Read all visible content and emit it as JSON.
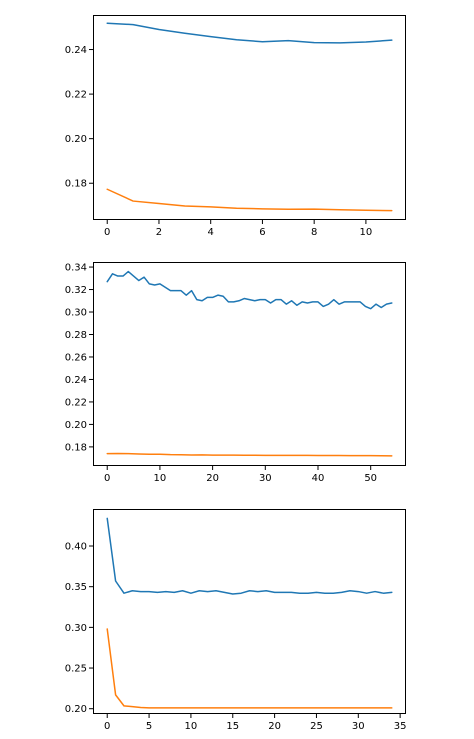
{
  "chart_data": [
    {
      "type": "line",
      "xlim": [
        -0.55,
        11.55
      ],
      "ylim": [
        0.1635,
        0.2555
      ],
      "xticks": [
        0,
        2,
        4,
        6,
        8,
        10
      ],
      "xtick_labels": [
        "0",
        "2",
        "4",
        "6",
        "8",
        "10"
      ],
      "yticks": [
        0.18,
        0.2,
        0.22,
        0.24
      ],
      "ytick_labels": [
        "0.18",
        "0.20",
        "0.22",
        "0.24"
      ],
      "series": [
        {
          "color": "#1f77b4",
          "x": [
            0,
            1,
            2,
            3,
            4,
            5,
            6,
            7,
            8,
            9,
            10,
            11
          ],
          "y": [
            0.2518,
            0.2512,
            0.249,
            0.2473,
            0.2458,
            0.2444,
            0.2435,
            0.244,
            0.2431,
            0.243,
            0.2434,
            0.2442
          ]
        },
        {
          "color": "#ff7f0e",
          "x": [
            0,
            1,
            2,
            3,
            4,
            5,
            6,
            7,
            8,
            9,
            10,
            11
          ],
          "y": [
            0.1773,
            0.172,
            0.1709,
            0.1698,
            0.1694,
            0.1688,
            0.1685,
            0.1683,
            0.1684,
            0.1681,
            0.1679,
            0.1677
          ]
        }
      ]
    },
    {
      "type": "line",
      "xlim": [
        -2.7,
        56.7
      ],
      "ylim": [
        0.163,
        0.3445
      ],
      "xticks": [
        0,
        10,
        20,
        30,
        40,
        50
      ],
      "xtick_labels": [
        "0",
        "10",
        "20",
        "30",
        "40",
        "50"
      ],
      "yticks": [
        0.18,
        0.2,
        0.22,
        0.24,
        0.26,
        0.28,
        0.3,
        0.32,
        0.34
      ],
      "ytick_labels": [
        "0.18",
        "0.20",
        "0.22",
        "0.24",
        "0.26",
        "0.28",
        "0.30",
        "0.32",
        "0.34"
      ],
      "series": [
        {
          "color": "#1f77b4",
          "x": [
            0,
            1,
            2,
            3,
            4,
            5,
            6,
            7,
            8,
            9,
            10,
            11,
            12,
            13,
            14,
            15,
            16,
            17,
            18,
            19,
            20,
            21,
            22,
            23,
            24,
            25,
            26,
            27,
            28,
            29,
            30,
            31,
            32,
            33,
            34,
            35,
            36,
            37,
            38,
            39,
            40,
            41,
            42,
            43,
            44,
            45,
            46,
            47,
            48,
            49,
            50,
            51,
            52,
            53,
            54
          ],
          "y": [
            0.327,
            0.334,
            0.332,
            0.332,
            0.336,
            0.332,
            0.328,
            0.331,
            0.325,
            0.324,
            0.325,
            0.322,
            0.319,
            0.319,
            0.319,
            0.315,
            0.319,
            0.311,
            0.31,
            0.313,
            0.313,
            0.315,
            0.314,
            0.309,
            0.309,
            0.31,
            0.312,
            0.311,
            0.31,
            0.311,
            0.311,
            0.308,
            0.311,
            0.311,
            0.307,
            0.31,
            0.306,
            0.309,
            0.308,
            0.309,
            0.309,
            0.305,
            0.307,
            0.311,
            0.307,
            0.309,
            0.309,
            0.309,
            0.309,
            0.305,
            0.303,
            0.307,
            0.304,
            0.307,
            0.308
          ]
        },
        {
          "color": "#ff7f0e",
          "x": [
            0,
            2,
            4,
            6,
            8,
            10,
            12,
            14,
            16,
            18,
            20,
            22,
            24,
            26,
            28,
            30,
            32,
            34,
            36,
            38,
            40,
            42,
            44,
            46,
            48,
            50,
            52,
            54
          ],
          "y": [
            0.174,
            0.1741,
            0.174,
            0.1737,
            0.1735,
            0.1735,
            0.1731,
            0.173,
            0.1728,
            0.1729,
            0.1727,
            0.1727,
            0.1727,
            0.1726,
            0.1726,
            0.1725,
            0.1725,
            0.1725,
            0.1724,
            0.1724,
            0.1723,
            0.1723,
            0.1723,
            0.1722,
            0.1722,
            0.1722,
            0.1721,
            0.172
          ]
        }
      ]
    },
    {
      "type": "line",
      "xlim": [
        -1.7,
        35.7
      ],
      "ylim": [
        0.1935,
        0.4455
      ],
      "xticks": [
        0,
        5,
        10,
        15,
        20,
        25,
        30,
        35
      ],
      "xtick_labels": [
        "0",
        "5",
        "10",
        "15",
        "20",
        "25",
        "30",
        "35"
      ],
      "yticks": [
        0.2,
        0.25,
        0.3,
        0.35,
        0.4
      ],
      "ytick_labels": [
        "0.20",
        "0.25",
        "0.30",
        "0.35",
        "0.40"
      ],
      "series": [
        {
          "color": "#1f77b4",
          "x": [
            0,
            1,
            2,
            3,
            4,
            5,
            6,
            7,
            8,
            9,
            10,
            11,
            12,
            13,
            14,
            15,
            16,
            17,
            18,
            19,
            20,
            21,
            22,
            23,
            24,
            25,
            26,
            27,
            28,
            29,
            30,
            31,
            32,
            33,
            34
          ],
          "y": [
            0.434,
            0.357,
            0.342,
            0.345,
            0.344,
            0.344,
            0.343,
            0.344,
            0.343,
            0.345,
            0.342,
            0.345,
            0.344,
            0.345,
            0.343,
            0.341,
            0.342,
            0.345,
            0.344,
            0.345,
            0.343,
            0.343,
            0.343,
            0.342,
            0.342,
            0.343,
            0.342,
            0.342,
            0.343,
            0.345,
            0.344,
            0.342,
            0.344,
            0.342,
            0.343
          ]
        },
        {
          "color": "#ff7f0e",
          "x": [
            0,
            1,
            2,
            3,
            4,
            5,
            6,
            7,
            8,
            9,
            10,
            11,
            12,
            13,
            14,
            15,
            16,
            17,
            18,
            19,
            20,
            21,
            22,
            23,
            24,
            25,
            26,
            27,
            28,
            29,
            30,
            31,
            32,
            33,
            34
          ],
          "y": [
            0.298,
            0.217,
            0.2035,
            0.2025,
            0.2015,
            0.201,
            0.201,
            0.201,
            0.201,
            0.201,
            0.201,
            0.201,
            0.201,
            0.201,
            0.201,
            0.201,
            0.201,
            0.201,
            0.201,
            0.201,
            0.201,
            0.201,
            0.201,
            0.201,
            0.201,
            0.201,
            0.201,
            0.201,
            0.201,
            0.201,
            0.201,
            0.201,
            0.201,
            0.201,
            0.201
          ]
        }
      ]
    }
  ]
}
